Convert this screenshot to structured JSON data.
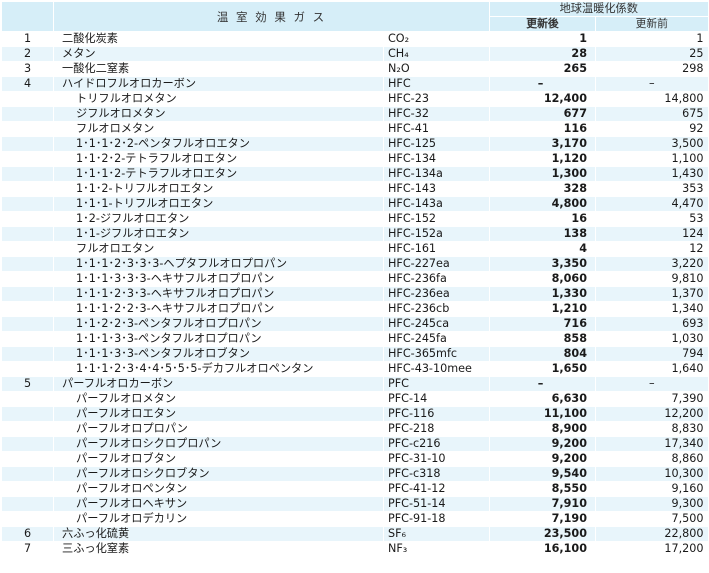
{
  "header": {
    "gas_title": "温 室 効 果 ガ ス",
    "gwp_title": "地球温暖化係数",
    "after_label": "更新後",
    "before_label": "更新前"
  },
  "rows": [
    {
      "no": "1",
      "name": "二酸化炭素",
      "formula": "CO₂",
      "after": "1",
      "before": "1",
      "level": "top"
    },
    {
      "no": "2",
      "name": "メタン",
      "formula": "CH₄",
      "after": "28",
      "before": "25",
      "level": "top"
    },
    {
      "no": "3",
      "name": "一酸化二窒素",
      "formula": "N₂O",
      "after": "265",
      "before": "298",
      "level": "top"
    },
    {
      "no": "4",
      "name": "ハイドロフルオロカーボン",
      "formula": "HFC",
      "after": "–",
      "before": "–",
      "level": "top"
    },
    {
      "no": "",
      "name": "トリフルオロメタン",
      "formula": "HFC-23",
      "after": "12,400",
      "before": "14,800",
      "level": "sub"
    },
    {
      "no": "",
      "name": "ジフルオロメタン",
      "formula": "HFC-32",
      "after": "677",
      "before": "675",
      "level": "sub"
    },
    {
      "no": "",
      "name": "フルオロメタン",
      "formula": "HFC-41",
      "after": "116",
      "before": "92",
      "level": "sub"
    },
    {
      "no": "",
      "name": "1･1･1･2･2-ペンタフルオロエタン",
      "formula": "HFC-125",
      "after": "3,170",
      "before": "3,500",
      "level": "sub"
    },
    {
      "no": "",
      "name": "1･1･2･2-テトラフルオロエタン",
      "formula": "HFC-134",
      "after": "1,120",
      "before": "1,100",
      "level": "sub"
    },
    {
      "no": "",
      "name": "1･1･1･2-テトラフルオロエタン",
      "formula": "HFC-134a",
      "after": "1,300",
      "before": "1,430",
      "level": "sub"
    },
    {
      "no": "",
      "name": "1･1･2-トリフルオロエタン",
      "formula": "HFC-143",
      "after": "328",
      "before": "353",
      "level": "sub"
    },
    {
      "no": "",
      "name": "1･1･1-トリフルオロエタン",
      "formula": "HFC-143a",
      "after": "4,800",
      "before": "4,470",
      "level": "sub"
    },
    {
      "no": "",
      "name": "1･2-ジフルオロエタン",
      "formula": "HFC-152",
      "after": "16",
      "before": "53",
      "level": "sub"
    },
    {
      "no": "",
      "name": "1･1-ジフルオロエタン",
      "formula": "HFC-152a",
      "after": "138",
      "before": "124",
      "level": "sub"
    },
    {
      "no": "",
      "name": "フルオロエタン",
      "formula": "HFC-161",
      "after": "4",
      "before": "12",
      "level": "sub"
    },
    {
      "no": "",
      "name": "1･1･1･2･3･3･3-ヘプタフルオロプロパン",
      "formula": "HFC-227ea",
      "after": "3,350",
      "before": "3,220",
      "level": "sub"
    },
    {
      "no": "",
      "name": "1･1･1･3･3･3-ヘキサフルオロプロパン",
      "formula": "HFC-236fa",
      "after": "8,060",
      "before": "9,810",
      "level": "sub"
    },
    {
      "no": "",
      "name": "1･1･1･2･3･3-ヘキサフルオロプロパン",
      "formula": "HFC-236ea",
      "after": "1,330",
      "before": "1,370",
      "level": "sub"
    },
    {
      "no": "",
      "name": "1･1･1･2･2･3-ヘキサフルオロプロパン",
      "formula": "HFC-236cb",
      "after": "1,210",
      "before": "1,340",
      "level": "sub"
    },
    {
      "no": "",
      "name": "1･1･2･2･3-ペンタフルオロプロパン",
      "formula": "HFC-245ca",
      "after": "716",
      "before": "693",
      "level": "sub"
    },
    {
      "no": "",
      "name": "1･1･1･3･3-ペンタフルオロプロパン",
      "formula": "HFC-245fa",
      "after": "858",
      "before": "1,030",
      "level": "sub"
    },
    {
      "no": "",
      "name": "1･1･1･3･3-ペンタフルオロブタン",
      "formula": "HFC-365mfc",
      "after": "804",
      "before": "794",
      "level": "sub"
    },
    {
      "no": "",
      "name": "1･1･1･2･3･4･4･5･5･5-デカフルオロペンタン",
      "formula": "HFC-43-10mee",
      "after": "1,650",
      "before": "1,640",
      "level": "sub"
    },
    {
      "no": "5",
      "name": "パーフルオロカーボン",
      "formula": "PFC",
      "after": "–",
      "before": "–",
      "level": "top"
    },
    {
      "no": "",
      "name": "パーフルオロメタン",
      "formula": "PFC-14",
      "after": "6,630",
      "before": "7,390",
      "level": "sub"
    },
    {
      "no": "",
      "name": "パーフルオロエタン",
      "formula": "PFC-116",
      "after": "11,100",
      "before": "12,200",
      "level": "sub"
    },
    {
      "no": "",
      "name": "パーフルオロプロパン",
      "formula": "PFC-218",
      "after": "8,900",
      "before": "8,830",
      "level": "sub"
    },
    {
      "no": "",
      "name": "パーフルオロシクロプロパン",
      "formula": "PFC-c216",
      "after": "9,200",
      "before": "17,340",
      "level": "sub"
    },
    {
      "no": "",
      "name": "パーフルオロブタン",
      "formula": "PFC-31-10",
      "after": "9,200",
      "before": "8,860",
      "level": "sub"
    },
    {
      "no": "",
      "name": "パーフルオロシクロブタン",
      "formula": "PFC-c318",
      "after": "9,540",
      "before": "10,300",
      "level": "sub"
    },
    {
      "no": "",
      "name": "パーフルオロペンタン",
      "formula": "PFC-41-12",
      "after": "8,550",
      "before": "9,160",
      "level": "sub"
    },
    {
      "no": "",
      "name": "パーフルオロヘキサン",
      "formula": "PFC-51-14",
      "after": "7,910",
      "before": "9,300",
      "level": "sub"
    },
    {
      "no": "",
      "name": "パーフルオロデカリン",
      "formula": "PFC-91-18",
      "after": "7,190",
      "before": "7,500",
      "level": "sub"
    },
    {
      "no": "6",
      "name": "六ふっ化硫黄",
      "formula": "SF₆",
      "after": "23,500",
      "before": "22,800",
      "level": "top"
    },
    {
      "no": "7",
      "name": "三ふっ化窒素",
      "formula": "NF₃",
      "after": "16,100",
      "before": "17,200",
      "level": "top"
    }
  ]
}
